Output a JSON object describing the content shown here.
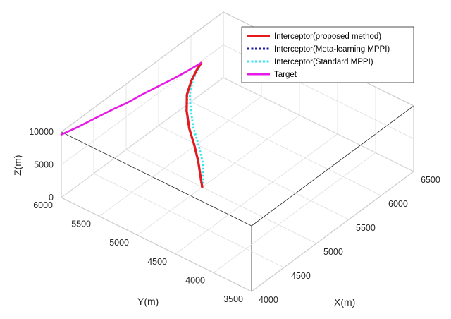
{
  "chart_data": {
    "type": "line3d",
    "title": "",
    "xlabel": "X(m)",
    "ylabel": "Y(m)",
    "zlabel": "Z(m)",
    "xlim": [
      4000,
      6500
    ],
    "ylim": [
      3500,
      6000
    ],
    "zlim": [
      0,
      10000
    ],
    "xticks": [
      "4000",
      "4500",
      "5000",
      "5500",
      "6000",
      "6500"
    ],
    "yticks": [
      "3500",
      "4000",
      "4500",
      "5000",
      "5500",
      "6000"
    ],
    "zticks": [
      "0",
      "5000",
      "10000"
    ],
    "grid": true,
    "legend_position": "top-right",
    "series": [
      {
        "name": "Interceptor(proposed method)",
        "color": "#e8191a",
        "style": "solid",
        "x": [
          5000,
          5030,
          5080,
          5140,
          5200,
          5300,
          5420,
          5560,
          5680,
          5760
        ],
        "y": [
          5000,
          5050,
          5120,
          5220,
          5340,
          5460,
          5560,
          5620,
          5650,
          5660
        ],
        "z": [
          0,
          1200,
          2600,
          4000,
          5500,
          6800,
          7800,
          8600,
          9200,
          9600
        ]
      },
      {
        "name": "Interceptor(Meta-learning MPPI)",
        "color": "#1a1aa6",
        "style": "dotted",
        "x": [
          5000,
          5030,
          5080,
          5140,
          5200,
          5300,
          5420,
          5560,
          5680,
          5760
        ],
        "y": [
          5000,
          5050,
          5120,
          5220,
          5340,
          5460,
          5560,
          5620,
          5650,
          5660
        ],
        "z": [
          0,
          1200,
          2600,
          4000,
          5500,
          6800,
          7800,
          8600,
          9200,
          9600
        ]
      },
      {
        "name": "Interceptor(Standard MPPI)",
        "color": "#33e6f2",
        "style": "dotted",
        "x": [
          5000,
          5050,
          5110,
          5170,
          5230,
          5330,
          5440,
          5570,
          5690,
          5760
        ],
        "y": [
          5000,
          5030,
          5090,
          5190,
          5310,
          5430,
          5540,
          5610,
          5645,
          5660
        ],
        "z": [
          0,
          1200,
          2600,
          4000,
          5500,
          6800,
          7800,
          8600,
          9200,
          9600
        ]
      },
      {
        "name": "Target",
        "color": "#e619e6",
        "style": "solid",
        "x": [
          4000,
          4200,
          4450,
          4650,
          4800,
          5000,
          5200,
          5400,
          5600,
          5760
        ],
        "y": [
          6000,
          5950,
          5900,
          5860,
          5820,
          5790,
          5750,
          5710,
          5680,
          5660
        ],
        "z": [
          9600,
          9600,
          9600,
          9600,
          9600,
          9600,
          9600,
          9600,
          9600,
          9600
        ]
      }
    ]
  }
}
